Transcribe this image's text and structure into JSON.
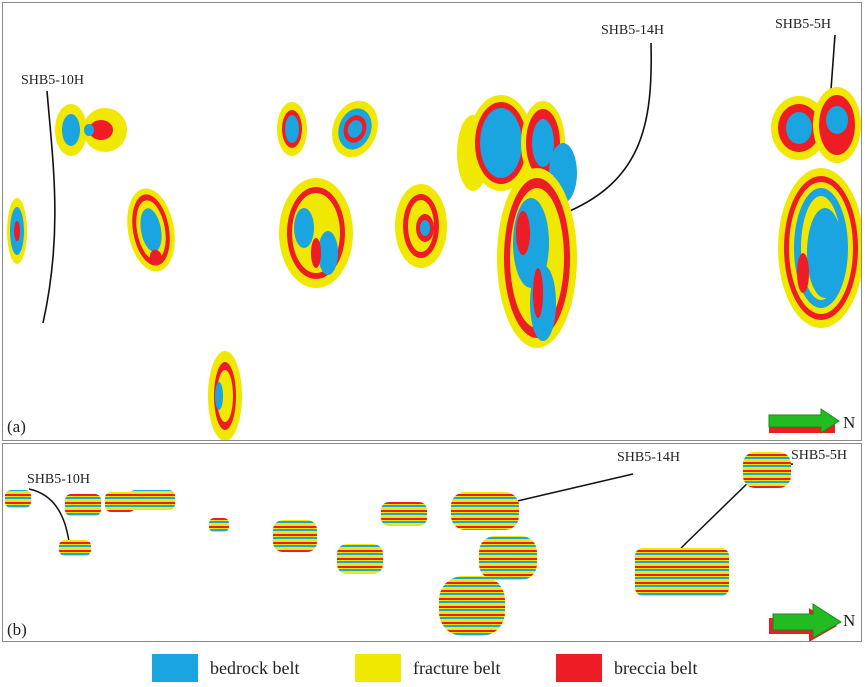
{
  "colors": {
    "bedrock": "#1aa4e0",
    "fracture": "#f0e800",
    "breccia": "#ee1c24",
    "green": "#22bb22",
    "well_line": "#111111"
  },
  "panel_a": {
    "label": "(a)",
    "wells": [
      "SHB5-10H",
      "SHB5-14H",
      "SHB5-5H"
    ],
    "north_label": "N"
  },
  "panel_b": {
    "label": "(b)",
    "wells": [
      "SHB5-10H",
      "SHB5-14H",
      "SHB5-5H"
    ],
    "north_label": "N"
  },
  "legend": [
    {
      "label": "bedrock belt",
      "color": "#1aa4e0"
    },
    {
      "label": "fracture belt",
      "color": "#f0e800"
    },
    {
      "label": "breccia belt",
      "color": "#ee1c24"
    }
  ]
}
